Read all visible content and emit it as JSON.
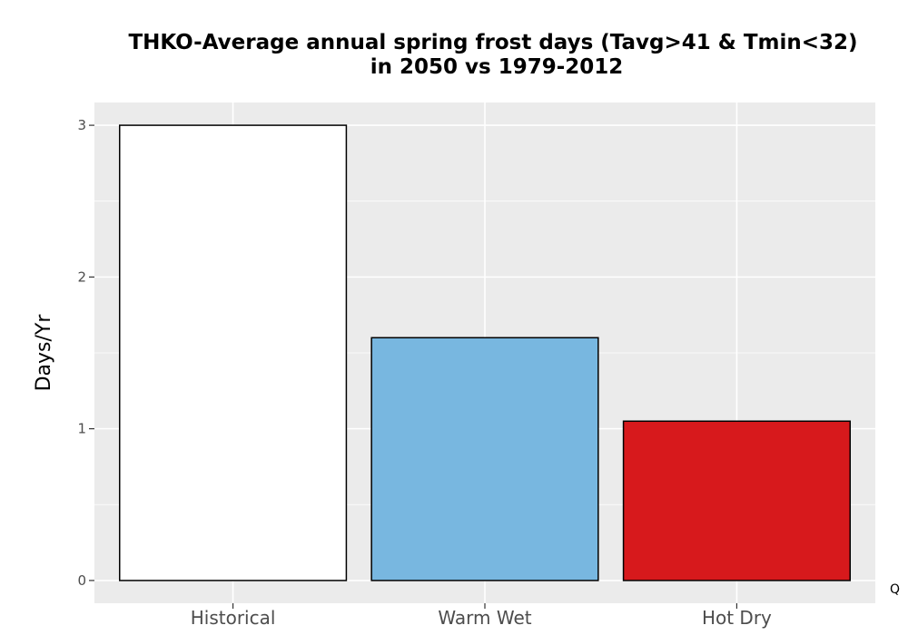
{
  "chart_data": {
    "type": "bar",
    "title_lines": [
      "THKO-Average annual spring frost days (Tavg>41 & Tmin<32)",
      "in 2050 vs 1979-2012"
    ],
    "xlabel": "",
    "ylabel": "Days/Yr",
    "categories": [
      "Historical",
      "Warm Wet",
      "Hot Dry"
    ],
    "values": [
      3.0,
      1.6,
      1.05
    ],
    "colors": [
      "#ffffff",
      "#78b7e0",
      "#d7191c"
    ],
    "ylim": [
      -0.15,
      3.15
    ],
    "yticks": [
      0,
      1,
      2,
      3
    ],
    "grid": true,
    "panel_background": "#ebebeb",
    "footnote": "Q"
  }
}
